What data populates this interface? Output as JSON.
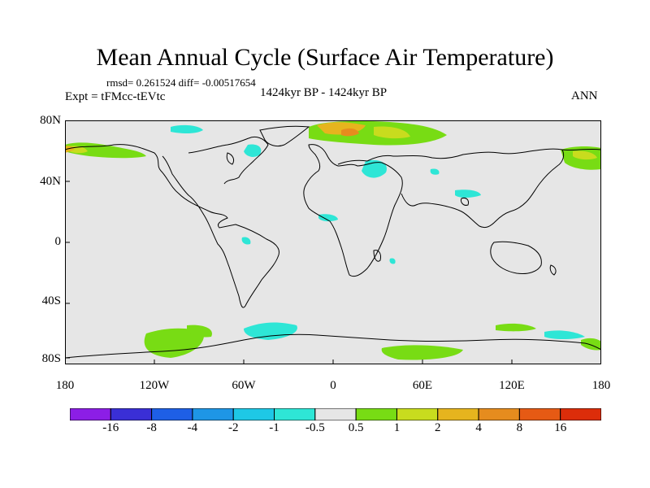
{
  "title": "Mean Annual Cycle (Surface Air Temperature)",
  "stats": "rmsd= 0.261524 diff= -0.00517654",
  "experiment": "Expt = tFMcc-tEVtc",
  "period": "1424kyr BP - 1424kyr BP",
  "season": "ANN",
  "lat_labels": [
    "80N",
    "40N",
    "0",
    "40S",
    "80S"
  ],
  "lon_labels": [
    "180",
    "120W",
    "60W",
    "0",
    "60E",
    "120E",
    "180"
  ],
  "colorbar": {
    "labels": [
      "-16",
      "-8",
      "-4",
      "-2",
      "-1",
      "-0.5",
      "0.5",
      "1",
      "2",
      "4",
      "8",
      "16"
    ],
    "colors": [
      "#8c1ee6",
      "#3a2fd6",
      "#1e5fe6",
      "#1e96e6",
      "#1ec8e6",
      "#2ee6d6",
      "#e6e6e6",
      "#78dc14",
      "#c8dc1e",
      "#e6b41e",
      "#e68c1e",
      "#e65a14",
      "#dc2d0a"
    ]
  }
}
